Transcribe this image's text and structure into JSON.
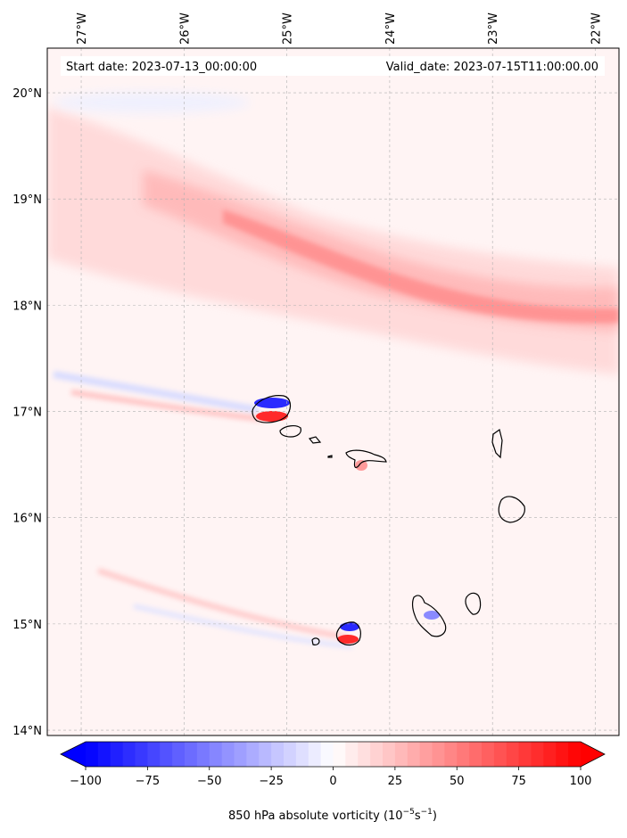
{
  "map": {
    "start_label": "Start date: 2023-07-13_00:00:00",
    "valid_label": "Valid_date: 2023-07-15T11:00:00.00",
    "lon_ticks": [
      "27°W",
      "26°W",
      "25°W",
      "24°W",
      "23°W",
      "22°W"
    ],
    "lon_values": [
      -27,
      -26,
      -25,
      -24,
      -23,
      -22
    ],
    "lat_ticks": [
      "20°N",
      "19°N",
      "18°N",
      "17°N",
      "16°N",
      "15°N",
      "14°N"
    ],
    "lat_values": [
      20,
      19,
      18,
      17,
      16,
      15,
      14
    ],
    "extent": {
      "lon_min": -27.33,
      "lon_max": -21.77,
      "lat_min": 13.95,
      "lat_max": 20.42
    },
    "field": "850 hPa absolute vorticity",
    "colors": {
      "negative": "#0000ff",
      "zero": "#ffffff",
      "positive": "#ff0000",
      "background_field": "#fff4f4",
      "coastline": "#000000",
      "gridline": "#b0b0b0"
    }
  },
  "colorbar": {
    "label_main": "850 hPa absolute vorticity (10",
    "label_exp1": "−5",
    "label_mid": "s",
    "label_exp2": "−1",
    "label_end": ")",
    "tick_labels": [
      "−100",
      "−75",
      "−50",
      "−25",
      "0",
      "25",
      "50",
      "75",
      "100"
    ],
    "tick_values": [
      -100,
      -75,
      -50,
      -25,
      0,
      25,
      50,
      75,
      100
    ],
    "range": [
      -100,
      100
    ],
    "extend": "both"
  }
}
